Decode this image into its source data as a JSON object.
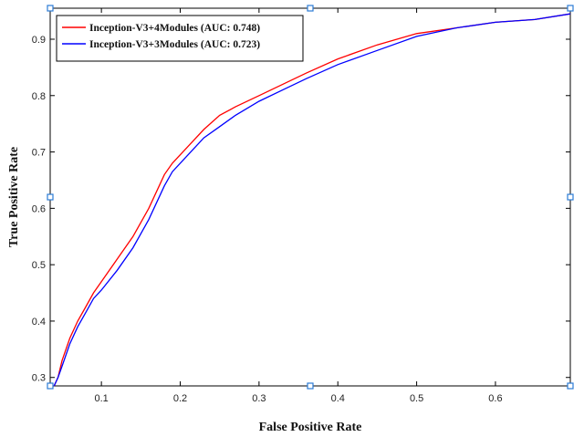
{
  "chart_data": {
    "type": "line",
    "title": "",
    "xlabel": "False Positive Rate",
    "ylabel": "True Positive Rate",
    "xlim": [
      0.035,
      0.695
    ],
    "ylim": [
      0.285,
      0.955
    ],
    "xticks": [
      0.1,
      0.2,
      0.3,
      0.4,
      0.5,
      0.6
    ],
    "yticks": [
      0.3,
      0.4,
      0.5,
      0.6,
      0.7,
      0.8,
      0.9
    ],
    "xtick_labels": [
      "0.1",
      "0.2",
      "0.3",
      "0.4",
      "0.5",
      "0.6"
    ],
    "ytick_labels": [
      "0.3",
      "0.4",
      "0.5",
      "0.6",
      "0.7",
      "0.8",
      "0.9"
    ],
    "legend_position": "top-left",
    "grid": false,
    "series": [
      {
        "name": "Inception-V3+4Modules (AUC:  0.748)",
        "color": "#ff0000",
        "x": [
          0.04,
          0.045,
          0.05,
          0.06,
          0.07,
          0.08,
          0.09,
          0.1,
          0.12,
          0.14,
          0.16,
          0.18,
          0.19,
          0.21,
          0.23,
          0.25,
          0.27,
          0.3,
          0.33,
          0.36,
          0.4,
          0.45,
          0.5,
          0.55,
          0.6,
          0.65,
          0.695
        ],
        "y": [
          0.285,
          0.3,
          0.33,
          0.37,
          0.4,
          0.425,
          0.45,
          0.47,
          0.51,
          0.55,
          0.6,
          0.66,
          0.68,
          0.71,
          0.74,
          0.765,
          0.78,
          0.8,
          0.82,
          0.84,
          0.865,
          0.89,
          0.91,
          0.92,
          0.93,
          0.935,
          0.945
        ]
      },
      {
        "name": "Inception-V3+3Modules (AUC:  0.723)",
        "color": "#0000ff",
        "x": [
          0.04,
          0.045,
          0.05,
          0.06,
          0.07,
          0.08,
          0.09,
          0.1,
          0.12,
          0.14,
          0.16,
          0.18,
          0.19,
          0.21,
          0.23,
          0.25,
          0.27,
          0.3,
          0.33,
          0.36,
          0.4,
          0.45,
          0.5,
          0.55,
          0.6,
          0.65,
          0.695
        ],
        "y": [
          0.285,
          0.3,
          0.32,
          0.36,
          0.39,
          0.415,
          0.44,
          0.455,
          0.49,
          0.53,
          0.58,
          0.64,
          0.665,
          0.695,
          0.725,
          0.745,
          0.765,
          0.79,
          0.81,
          0.83,
          0.855,
          0.88,
          0.905,
          0.92,
          0.93,
          0.935,
          0.945
        ]
      }
    ]
  }
}
